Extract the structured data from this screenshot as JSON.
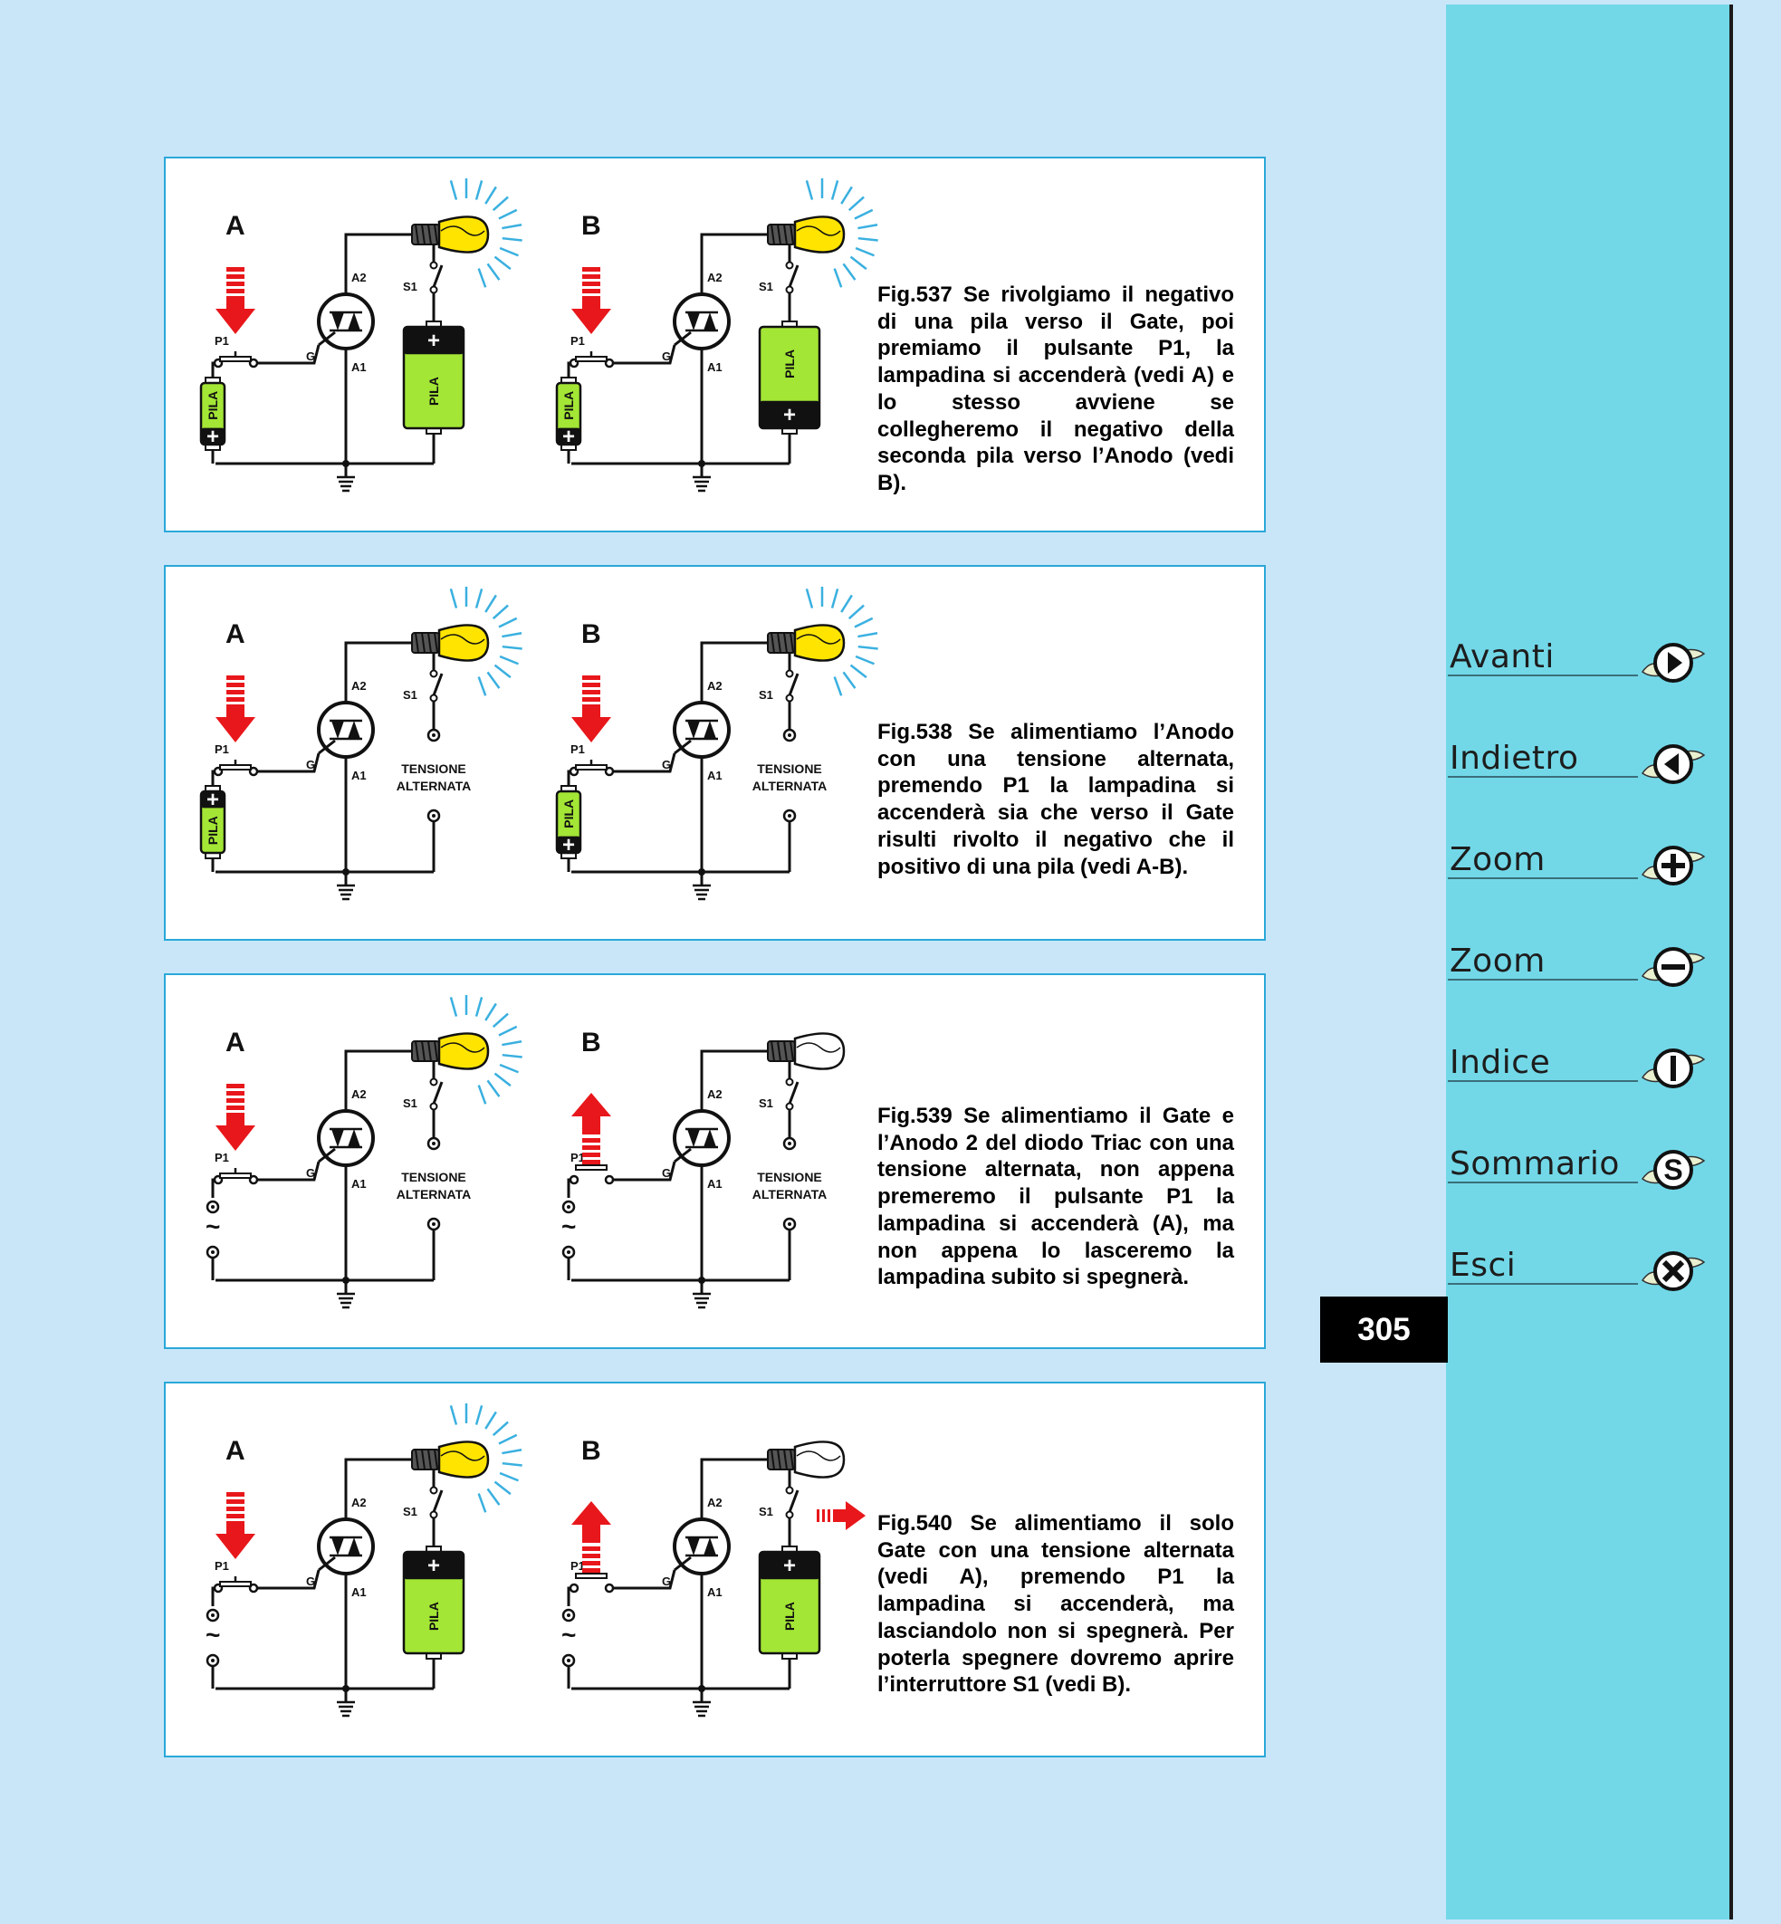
{
  "figures": [
    {
      "id": "fig537",
      "caption": "Fig.537 Se rivolgiamo il negativo di una pila verso il Gate, poi premiamo il pulsante P1, la lampadina si accenderà (vedi A) e lo stesso avviene se collegheremo il negativo della seconda pila verso l’Anodo (vedi B).",
      "circuits": [
        {
          "letter": "A",
          "gate_source": "pila_neg_up",
          "anode_source": "pila_pos_up",
          "lamp_on": true,
          "arrow": "down",
          "p1_pressed": true,
          "s1_extra_arrow": false,
          "labels": {
            "p1": "P1",
            "g": "G",
            "a1": "A1",
            "a2": "A2",
            "s1": "S1",
            "pila": "PILA",
            "plus": "+"
          }
        },
        {
          "letter": "B",
          "gate_source": "pila_neg_up",
          "anode_source": "pila_neg_up",
          "lamp_on": true,
          "arrow": "down",
          "p1_pressed": true,
          "s1_extra_arrow": false,
          "labels": {
            "p1": "P1",
            "g": "G",
            "a1": "A1",
            "a2": "A2",
            "s1": "S1",
            "pila": "PILA",
            "plus": "+"
          }
        }
      ]
    },
    {
      "id": "fig538",
      "caption": "Fig.538 Se alimentiamo l’Anodo con una tensione alternata, premendo P1 la lampadina si accenderà sia che verso il Gate risulti rivolto il negativo che il positivo di una pila (vedi A-B).",
      "circuits": [
        {
          "letter": "A",
          "gate_source": "pila_pos_up",
          "anode_source": "tensione",
          "lamp_on": true,
          "arrow": "down",
          "p1_pressed": true,
          "s1_extra_arrow": false,
          "labels": {
            "p1": "P1",
            "g": "G",
            "a1": "A1",
            "a2": "A2",
            "s1": "S1",
            "pila": "PILA",
            "plus": "+",
            "tensione": "TENSIONE",
            "alternata": "ALTERNATA"
          }
        },
        {
          "letter": "B",
          "gate_source": "pila_neg_up",
          "anode_source": "tensione",
          "lamp_on": true,
          "arrow": "down",
          "p1_pressed": true,
          "s1_extra_arrow": false,
          "labels": {
            "p1": "P1",
            "g": "G",
            "a1": "A1",
            "a2": "A2",
            "s1": "S1",
            "pila": "PILA",
            "plus": "+",
            "tensione": "TENSIONE",
            "alternata": "ALTERNATA"
          }
        }
      ]
    },
    {
      "id": "fig539",
      "caption": "Fig.539 Se alimentiamo il Gate e l’Anodo 2 del diodo Triac con una tensione alternata, non appena premeremo il pulsante P1 la lampadina si accenderà (A), ma non appena lo lasceremo la lampadina subito si spegnerà.",
      "circuits": [
        {
          "letter": "A",
          "gate_source": "ac",
          "anode_source": "tensione",
          "lamp_on": true,
          "arrow": "down",
          "p1_pressed": true,
          "s1_extra_arrow": false,
          "labels": {
            "p1": "P1",
            "g": "G",
            "a1": "A1",
            "a2": "A2",
            "s1": "S1",
            "tilde": "~",
            "tensione": "TENSIONE",
            "alternata": "ALTERNATA"
          }
        },
        {
          "letter": "B",
          "gate_source": "ac",
          "anode_source": "tensione",
          "lamp_on": false,
          "arrow": "up",
          "p1_pressed": false,
          "s1_extra_arrow": false,
          "labels": {
            "p1": "P1",
            "g": "G",
            "a1": "A1",
            "a2": "A2",
            "s1": "S1",
            "tilde": "~",
            "tensione": "TENSIONE",
            "alternata": "ALTERNATA"
          }
        }
      ]
    },
    {
      "id": "fig540",
      "caption": "Fig.540 Se alimentiamo il solo Gate con una tensione alternata (vedi A), premendo P1 la lampadina si accenderà, ma lasciandolo non si spegnerà. Per poterla spegnere dovremo aprire l’interruttore S1 (vedi B).",
      "circuits": [
        {
          "letter": "A",
          "gate_source": "ac",
          "anode_source": "pila_pos_up",
          "lamp_on": true,
          "arrow": "down",
          "p1_pressed": true,
          "s1_extra_arrow": false,
          "labels": {
            "p1": "P1",
            "g": "G",
            "a1": "A1",
            "a2": "A2",
            "s1": "S1",
            "tilde": "~",
            "pila": "PILA",
            "plus": "+"
          }
        },
        {
          "letter": "B",
          "gate_source": "ac",
          "anode_source": "pila_pos_up",
          "lamp_on": false,
          "arrow": "up",
          "p1_pressed": false,
          "s1_extra_arrow": true,
          "labels": {
            "p1": "P1",
            "g": "G",
            "a1": "A1",
            "a2": "A2",
            "s1": "S1",
            "tilde": "~",
            "pila": "PILA",
            "plus": "+"
          }
        }
      ]
    }
  ],
  "nav": [
    {
      "label": "Avanti",
      "icon": "play-right-icon"
    },
    {
      "label": "Indietro",
      "icon": "play-left-icon"
    },
    {
      "label": "Zoom",
      "icon": "zoom-in-icon"
    },
    {
      "label": "Zoom",
      "icon": "zoom-out-icon"
    },
    {
      "label": "Indice",
      "icon": "index-icon"
    },
    {
      "label": "Sommario",
      "icon": "summary-icon"
    },
    {
      "label": "Esci",
      "icon": "exit-icon"
    }
  ],
  "page_number": "305",
  "colors": {
    "background": "#c9e6f9",
    "sidebar": "#72d8e8",
    "panel_border": "#2aa8d8",
    "battery_green": "#a3e635",
    "lamp_yellow": "#ffe400",
    "ray_blue": "#3ab0e0",
    "arrow_red": "#e8171b"
  }
}
